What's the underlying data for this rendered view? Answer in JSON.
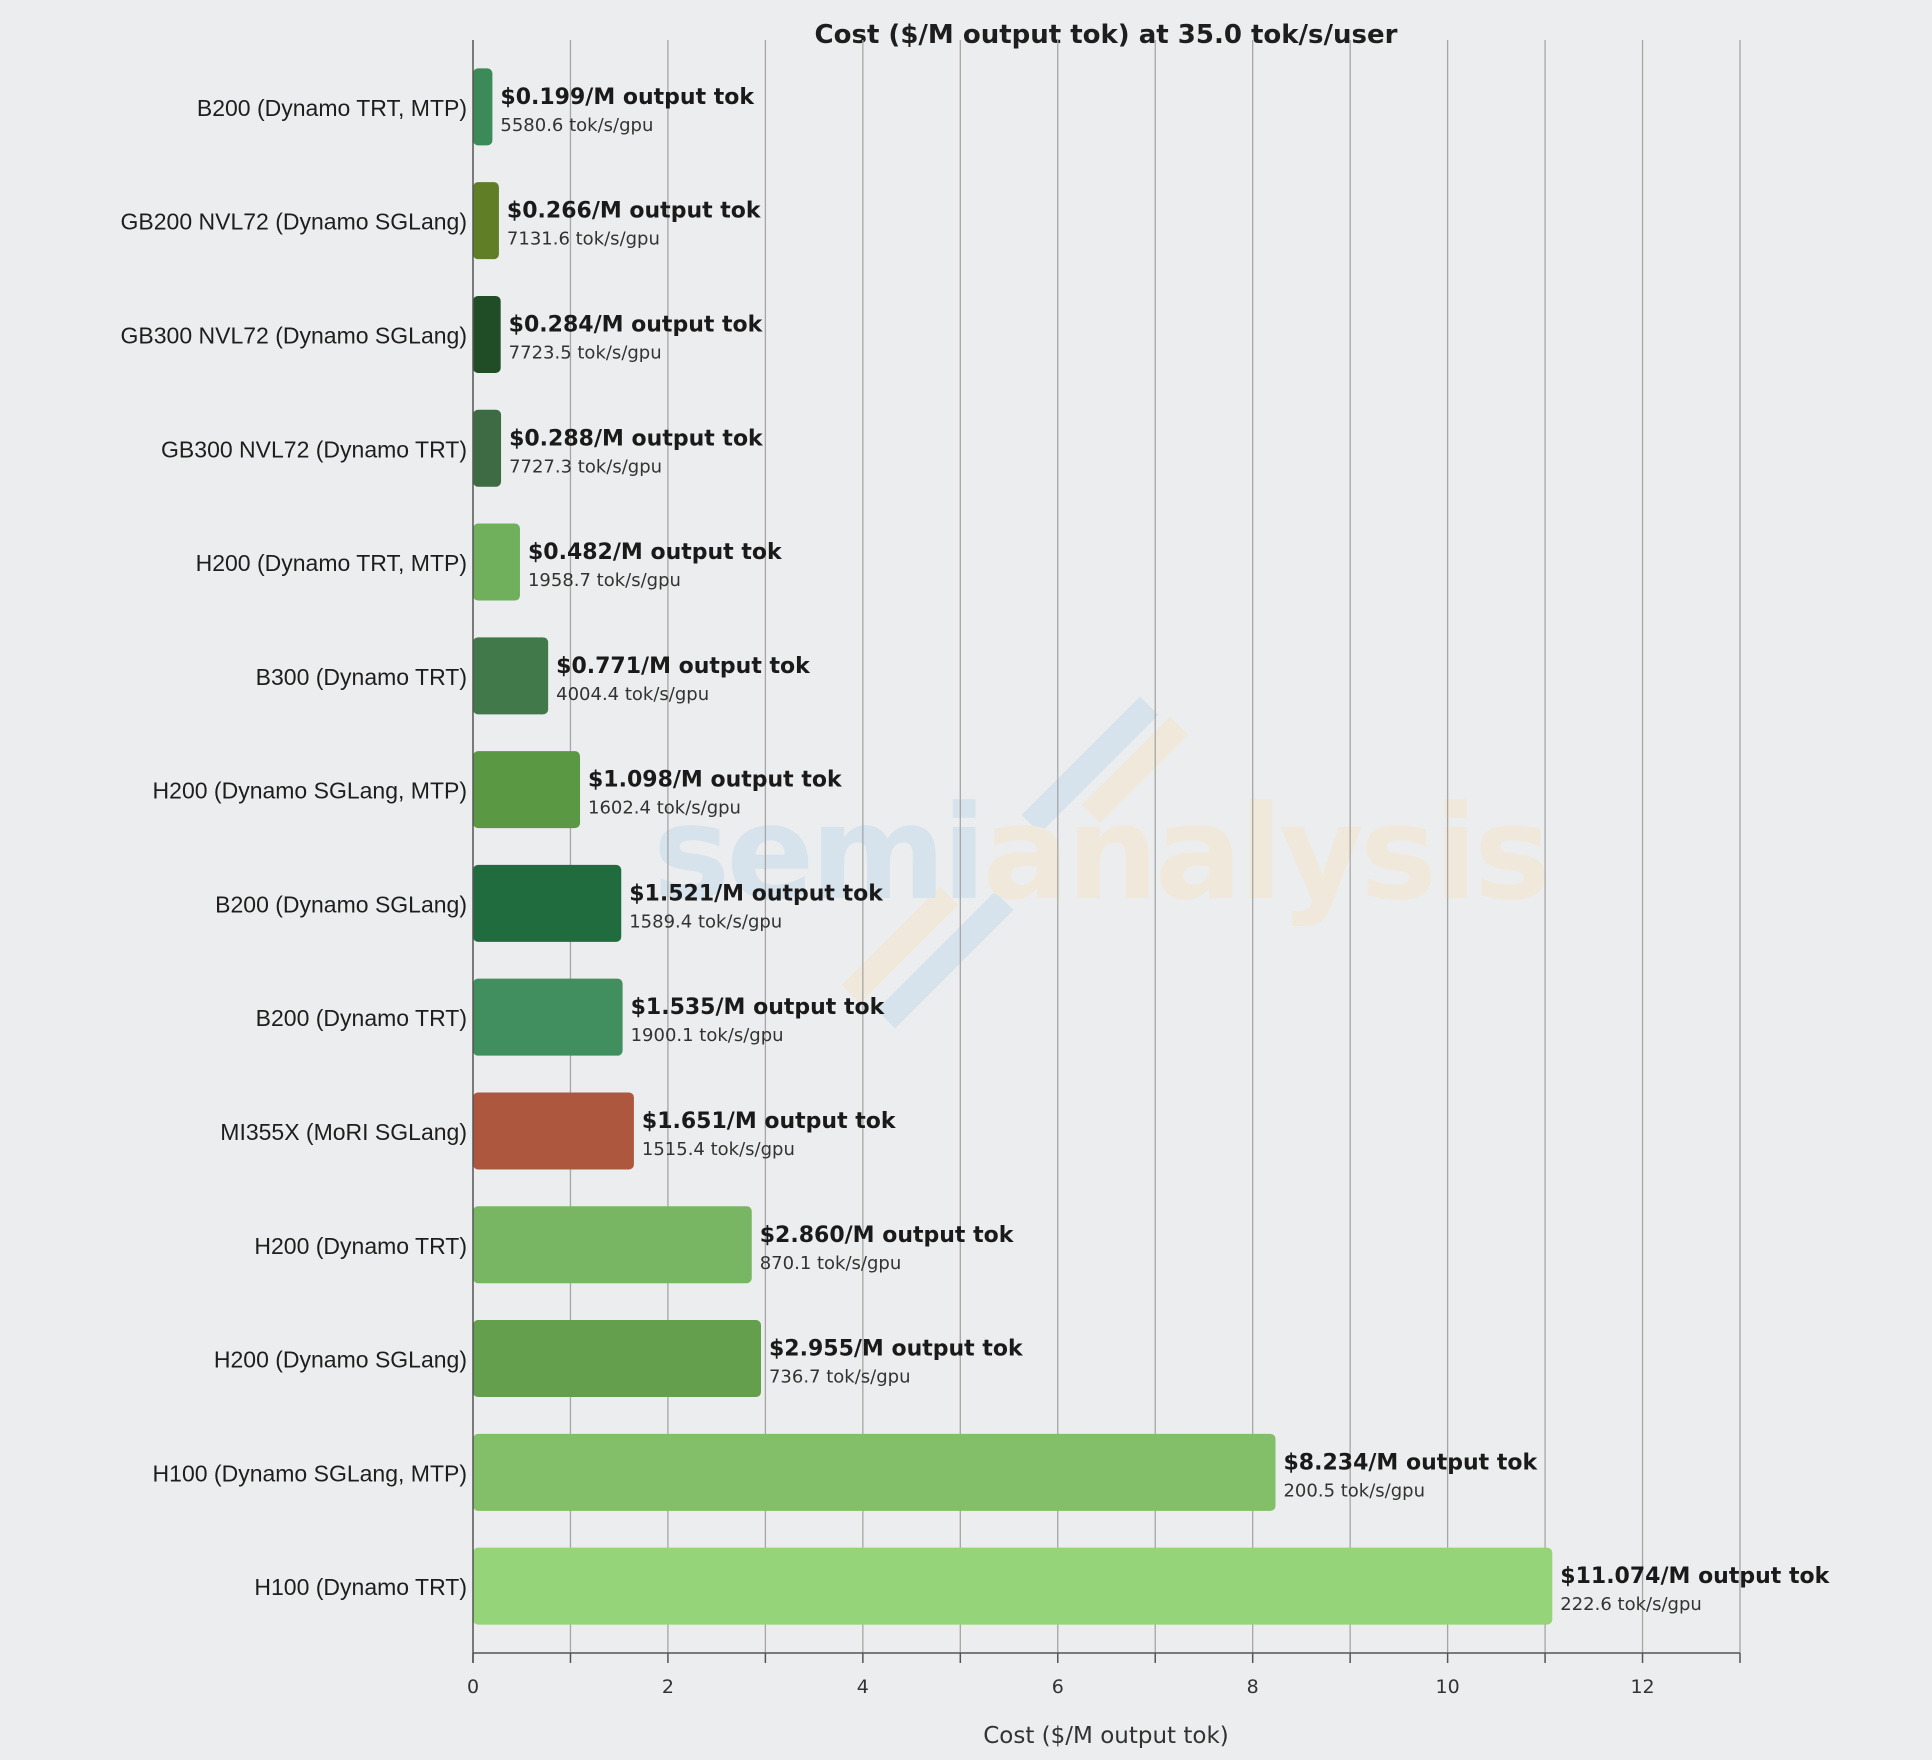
{
  "chart_data": {
    "type": "bar",
    "orientation": "horizontal",
    "title": "Cost ($/M output tok) at 35.0 tok/s/user",
    "xlabel": "Cost ($/M output tok)",
    "ylabel": "",
    "xlim": [
      0,
      13
    ],
    "xticks": [
      0,
      2,
      4,
      6,
      8,
      10,
      12
    ],
    "grid": "vertical",
    "value_suffix": "/M output tok",
    "throughput_suffix": " tok/s/gpu",
    "bars": [
      {
        "label": "B200 (Dynamo TRT, MTP)",
        "value": 0.199,
        "value_text": "$0.199/M output tok",
        "throughput": 5580.6,
        "throughput_text": "5580.6 tok/s/gpu",
        "color": "#3B8A57"
      },
      {
        "label": "GB200 NVL72 (Dynamo SGLang)",
        "value": 0.266,
        "value_text": "$0.266/M output tok",
        "throughput": 7131.6,
        "throughput_text": "7131.6 tok/s/gpu",
        "color": "#5F7E25"
      },
      {
        "label": "GB300 NVL72 (Dynamo SGLang)",
        "value": 0.284,
        "value_text": "$0.284/M output tok",
        "throughput": 7723.5,
        "throughput_text": "7723.5 tok/s/gpu",
        "color": "#204C26"
      },
      {
        "label": "GB300 NVL72 (Dynamo TRT)",
        "value": 0.288,
        "value_text": "$0.288/M output tok",
        "throughput": 7727.3,
        "throughput_text": "7727.3 tok/s/gpu",
        "color": "#3E6A44"
      },
      {
        "label": "H200 (Dynamo TRT, MTP)",
        "value": 0.482,
        "value_text": "$0.482/M output tok",
        "throughput": 1958.7,
        "throughput_text": "1958.7 tok/s/gpu",
        "color": "#70B05C"
      },
      {
        "label": "B300 (Dynamo TRT)",
        "value": 0.771,
        "value_text": "$0.771/M output tok",
        "throughput": 4004.4,
        "throughput_text": "4004.4 tok/s/gpu",
        "color": "#42794A"
      },
      {
        "label": "H200 (Dynamo SGLang, MTP)",
        "value": 1.098,
        "value_text": "$1.098/M output tok",
        "throughput": 1602.4,
        "throughput_text": "1602.4 tok/s/gpu",
        "color": "#5A9844"
      },
      {
        "label": "B200 (Dynamo SGLang)",
        "value": 1.521,
        "value_text": "$1.521/M output tok",
        "throughput": 1589.4,
        "throughput_text": "1589.4 tok/s/gpu",
        "color": "#216C3F"
      },
      {
        "label": "B200 (Dynamo TRT)",
        "value": 1.535,
        "value_text": "$1.535/M output tok",
        "throughput": 1900.1,
        "throughput_text": "1900.1 tok/s/gpu",
        "color": "#418E5E"
      },
      {
        "label": "MI355X (MoRI SGLang)",
        "value": 1.651,
        "value_text": "$1.651/M output tok",
        "throughput": 1515.4,
        "throughput_text": "1515.4 tok/s/gpu",
        "color": "#AD573E"
      },
      {
        "label": "H200 (Dynamo TRT)",
        "value": 2.86,
        "value_text": "$2.860/M output tok",
        "throughput": 870.1,
        "throughput_text": "870.1 tok/s/gpu",
        "color": "#78B663"
      },
      {
        "label": "H200 (Dynamo SGLang)",
        "value": 2.955,
        "value_text": "$2.955/M output tok",
        "throughput": 736.7,
        "throughput_text": "736.7 tok/s/gpu",
        "color": "#649F4D"
      },
      {
        "label": "H100 (Dynamo SGLang, MTP)",
        "value": 8.234,
        "value_text": "$8.234/M output tok",
        "throughput": 200.5,
        "throughput_text": "200.5 tok/s/gpu",
        "color": "#82BF68"
      },
      {
        "label": "H100 (Dynamo TRT)",
        "value": 11.074,
        "value_text": "$11.074/M output tok",
        "throughput": 222.6,
        "throughput_text": "222.6 tok/s/gpu",
        "color": "#95D479"
      }
    ]
  },
  "watermark": {
    "part1": "semi",
    "part2": "analysis",
    "color1": "#D6E2EC",
    "color2": "#F0E9DB"
  },
  "colors": {
    "background": "#ECEDEE",
    "grid": "#A6A6A6",
    "axis": "#555555"
  }
}
